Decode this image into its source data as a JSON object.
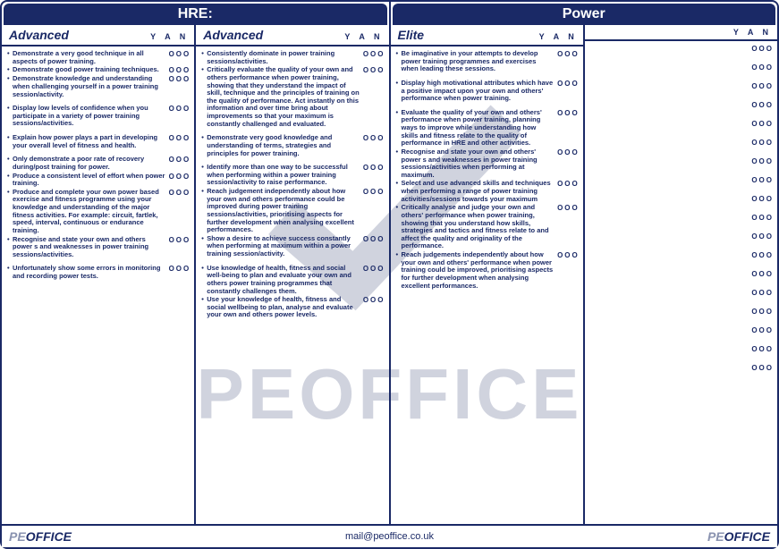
{
  "colors": {
    "primary": "#1a2966",
    "watermark": "rgba(120,130,160,0.35)",
    "logo_light": "#8a93b0",
    "background": "#ffffff"
  },
  "watermark_text": "PEOFFICE",
  "footer": {
    "email": "mail@peoffice.co.uk",
    "logo_pe": "PE",
    "logo_office": "OFFICE"
  },
  "yan_label": "Y A N",
  "check_glyph": "OOO",
  "sections": [
    {
      "title": "HRE:",
      "columns": [
        {
          "title": "Advanced",
          "groups": [
            [
              "Demonstrate a very good technique in all aspects of power training.",
              "Demonstrate good power training techniques.",
              "Demonstrate knowledge and understanding when challenging yourself in a power training session/activity."
            ],
            [
              "Display low levels of confidence when you participate in a variety of power training sessions/activities."
            ],
            [
              "Explain how power plays a part in developing your overall level of fitness and health."
            ],
            [
              "Only demonstrate a poor rate of recovery during/post training for power.",
              "Produce a consistent level of effort when power training.",
              "Produce and complete your own power based exercise and fitness programme using your knowledge and understanding of the major fitness activities. For example: circuit, fartlek, speed, interval, continuous or endurance training.",
              "Recognise and state your own and others power s and weaknesses in power training sessions/activities."
            ],
            [
              "Unfortunately show some errors in monitoring and recording power tests."
            ]
          ]
        },
        {
          "title": "Advanced",
          "groups": [
            [
              "Consistently dominate in power training sessions/activities.",
              "Critically evaluate the quality of your own and others performance when power training, showing that they understand the impact of skill, technique and the principles of training on the quality of performance. Act instantly on this information and over time bring about improvements so that your maximum is constantly challenged and evaluated."
            ],
            [
              "Demonstrate very good knowledge and understanding of terms, strategies and principles for power training."
            ],
            [
              "Identify more than one way to be successful when performing within a power training session/activity to raise performance.",
              "Reach judgement independently about how your own and others performance could be improved during power training sessions/activities, prioritising aspects for further development when analysing excellent performances.",
              "Show a desire to achieve success constantly when performing at maximum within a power training session/activity."
            ],
            [
              "Use knowledge of health, fitness and social well-being to plan and evaluate your own and others power training programmes that constantly challenges them.",
              "Use your knowledge of health, fitness and social wellbeing to plan, analyse and evaluate your own and others power levels."
            ]
          ]
        }
      ]
    },
    {
      "title": "Power",
      "columns": [
        {
          "title": "Elite",
          "groups": [
            [
              "Be imaginative in your attempts to develop power training programmes and exercises when leading these sessions."
            ],
            [
              "Display high motivational attributes which have a positive impact upon your own and others' performance when power training."
            ],
            [
              "Evaluate the quality of your own and others' performance when power training, planning ways to improve while understanding how skills and fitness relate to the quality of performance in HRE and other activities.",
              "Recognise and state your own and others' power s and weaknesses in power training sessions/activities when performing at maximum.",
              "Select and use advanced skills and techniques when performing a range of power training activities/sessions towards your maximum",
              "Critically analyse and judge your own and others' performance when power training, showing that you understand how skills, strategies and tactics and fitness relate to and affect the quality and originality of the performance.",
              "Reach judgements independently about how your own and others' performance when power training could be improved, prioritising aspects for further development when analysing excellent performances."
            ]
          ]
        },
        {
          "title": "",
          "empty_rows": 18
        }
      ]
    }
  ]
}
